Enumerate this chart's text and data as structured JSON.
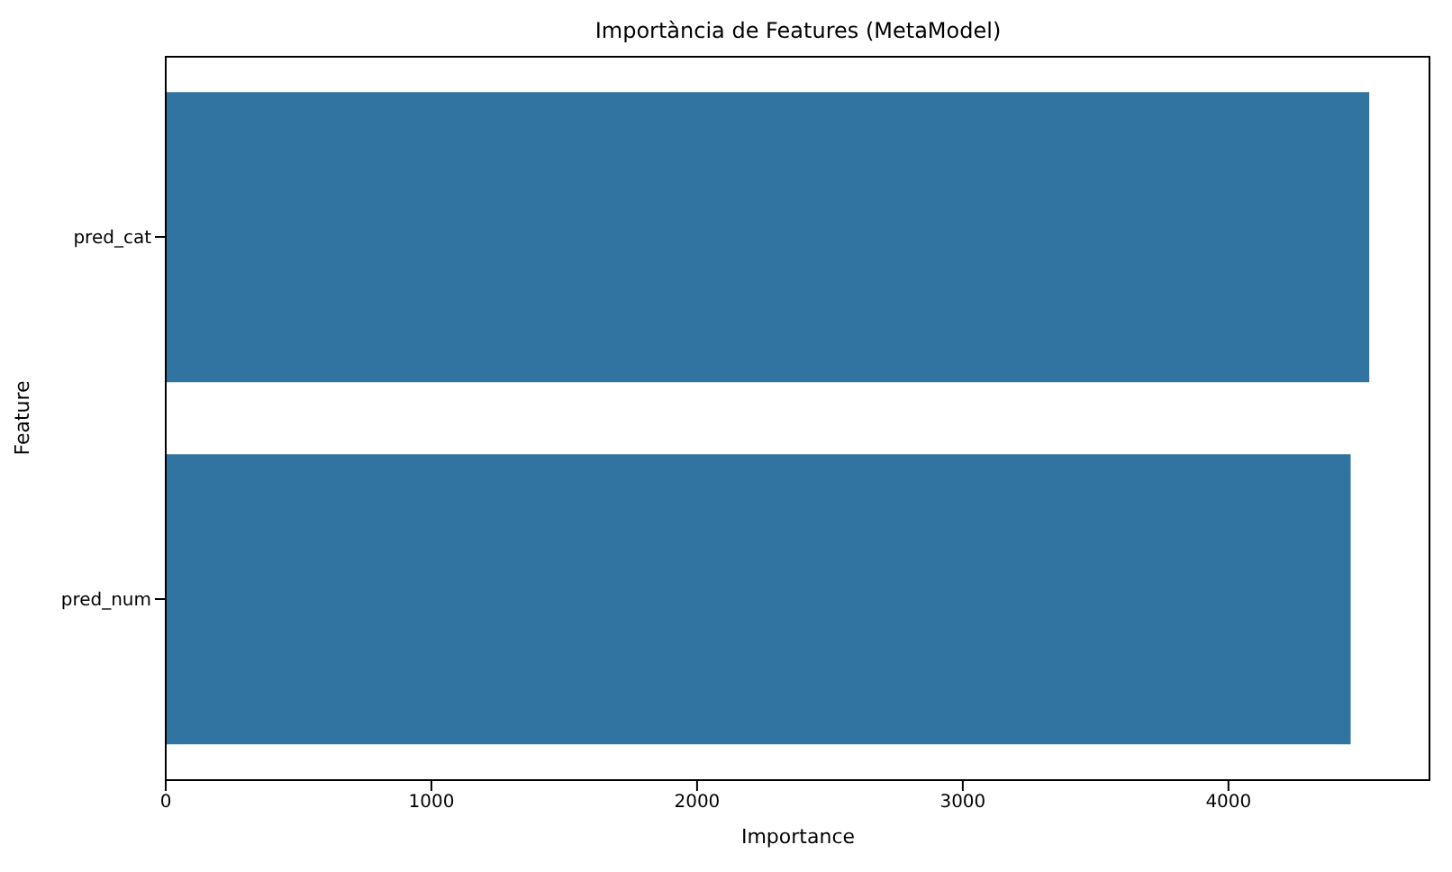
{
  "chart_data": {
    "type": "bar",
    "orientation": "horizontal",
    "title": "Importància de Features (MetaModel)",
    "xlabel": "Importance",
    "ylabel": "Feature",
    "categories": [
      "pred_cat",
      "pred_num"
    ],
    "values": [
      4530,
      4460
    ],
    "color": "#3274a1",
    "xlim": [
      0,
      4760
    ],
    "xticks": [
      0,
      1000,
      2000,
      3000,
      4000
    ]
  }
}
